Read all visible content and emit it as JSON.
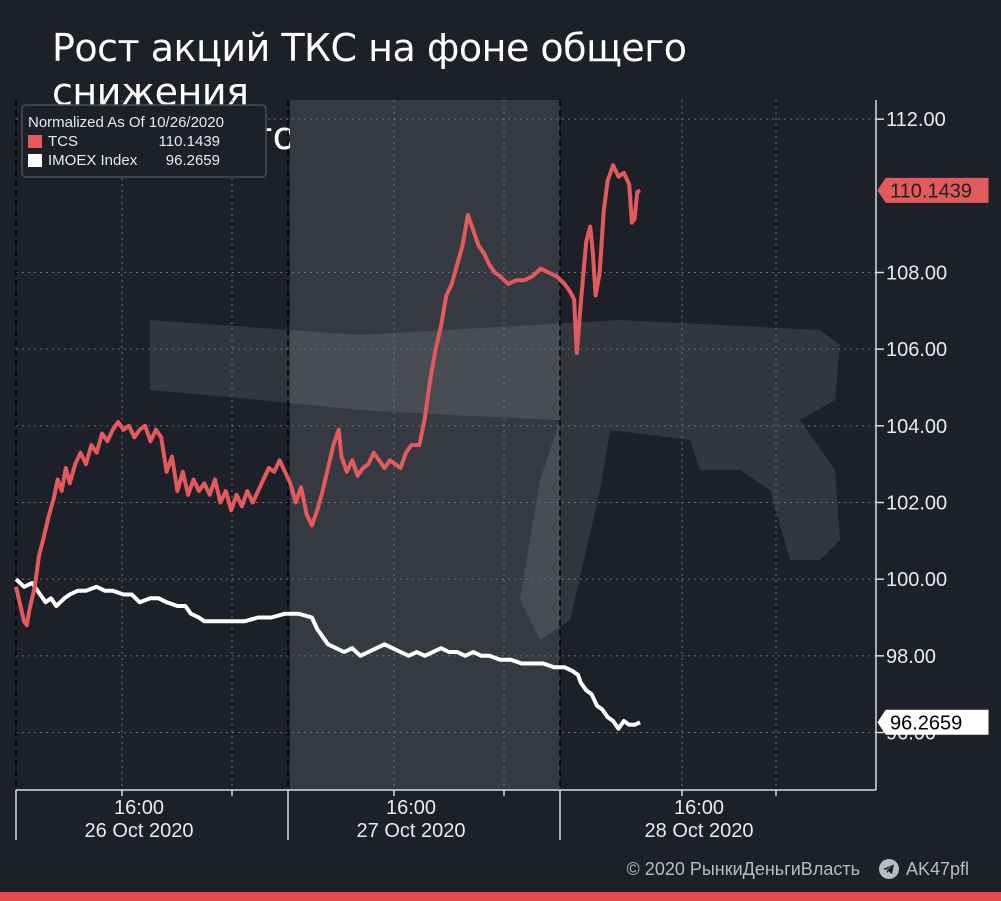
{
  "title_lines": [
    "Рост акций ТКС на фоне общего снижения",
    "российского рынка"
  ],
  "legend": {
    "header": "Normalized As Of 10/26/2020",
    "items": [
      {
        "label": "TCS",
        "value": "110.1439",
        "color": "#e35a5c"
      },
      {
        "label": "IMOEX Index",
        "value": "96.2659",
        "color": "#ffffff"
      }
    ]
  },
  "footer": {
    "copyright": "© 2020  РынкиДеньгиВласть",
    "telegram": "AK47pfl"
  },
  "colors": {
    "background": "#1d2028",
    "accent": "#e35a5c",
    "shade": "#363941",
    "grid": "#6b6e76"
  },
  "chart_data": {
    "type": "line",
    "x_ticks": [
      {
        "time": "16:00",
        "date": "26 Oct 2020"
      },
      {
        "time": "16:00",
        "date": "27 Oct 2020"
      },
      {
        "time": "16:00",
        "date": "28 Oct 2020"
      }
    ],
    "y_ticks": [
      "112.00",
      "108.00",
      "106.00",
      "104.00",
      "102.00",
      "100.00",
      "98.00",
      "96.00"
    ],
    "ylim": [
      94.5,
      112.5
    ],
    "grid": true,
    "legend_position": "top-left",
    "last_value_labels": [
      "110.1439",
      "96.2659"
    ],
    "series": [
      {
        "name": "TCS",
        "points": [
          [
            0,
            99.8
          ],
          [
            0.1,
            99.5
          ],
          [
            0.2,
            99.2
          ],
          [
            0.3,
            98.9
          ],
          [
            0.4,
            98.8
          ],
          [
            0.5,
            99.2
          ],
          [
            0.7,
            99.8
          ],
          [
            0.85,
            100.6
          ],
          [
            1.0,
            101.0
          ],
          [
            1.2,
            101.6
          ],
          [
            1.4,
            102.1
          ],
          [
            1.55,
            102.6
          ],
          [
            1.7,
            102.3
          ],
          [
            1.85,
            102.9
          ],
          [
            2.0,
            102.5
          ],
          [
            2.2,
            103.0
          ],
          [
            2.4,
            103.3
          ],
          [
            2.6,
            103.0
          ],
          [
            2.8,
            103.5
          ],
          [
            3.0,
            103.3
          ],
          [
            3.2,
            103.8
          ],
          [
            3.4,
            103.6
          ],
          [
            3.6,
            103.9
          ],
          [
            3.8,
            104.1
          ],
          [
            4.0,
            103.9
          ],
          [
            4.2,
            104.0
          ],
          [
            4.4,
            103.7
          ],
          [
            4.6,
            103.9
          ],
          [
            4.8,
            104.0
          ],
          [
            5.0,
            103.6
          ],
          [
            5.2,
            103.9
          ],
          [
            5.4,
            103.7
          ],
          [
            5.6,
            102.8
          ],
          [
            5.8,
            103.2
          ],
          [
            6.0,
            102.3
          ],
          [
            6.2,
            102.8
          ],
          [
            6.4,
            102.2
          ],
          [
            6.6,
            102.6
          ],
          [
            6.8,
            102.3
          ],
          [
            7.0,
            102.5
          ],
          [
            7.2,
            102.2
          ],
          [
            7.4,
            102.6
          ],
          [
            7.6,
            102.0
          ],
          [
            7.8,
            102.3
          ],
          [
            8.0,
            101.8
          ],
          [
            8.2,
            102.2
          ],
          [
            8.4,
            101.9
          ],
          [
            8.6,
            102.3
          ],
          [
            8.8,
            102.0
          ],
          [
            9.0,
            102.3
          ],
          [
            9.2,
            102.6
          ],
          [
            9.4,
            102.9
          ],
          [
            9.6,
            102.8
          ],
          [
            9.8,
            103.1
          ],
          [
            10.0,
            102.8
          ],
          [
            10.2,
            102.5
          ],
          [
            10.4,
            102.0
          ],
          [
            10.6,
            102.4
          ],
          [
            10.8,
            101.7
          ],
          [
            11.0,
            101.4
          ],
          [
            11.2,
            101.8
          ],
          [
            11.4,
            102.3
          ],
          [
            11.6,
            102.9
          ],
          [
            11.8,
            103.5
          ],
          [
            12.0,
            103.9
          ],
          [
            12.1,
            103.2
          ],
          [
            12.3,
            102.8
          ],
          [
            12.5,
            103.1
          ],
          [
            12.7,
            102.7
          ],
          [
            12.9,
            102.9
          ],
          [
            13.1,
            103.0
          ],
          [
            13.3,
            103.3
          ],
          [
            13.5,
            103.1
          ],
          [
            13.7,
            102.9
          ],
          [
            13.9,
            103.1
          ],
          [
            14.1,
            103.0
          ],
          [
            14.3,
            102.9
          ],
          [
            14.5,
            103.3
          ],
          [
            14.7,
            103.5
          ],
          [
            15.0,
            103.5
          ],
          [
            15.2,
            104.2
          ],
          [
            15.4,
            105.2
          ],
          [
            15.6,
            106.0
          ],
          [
            15.8,
            106.6
          ],
          [
            16.0,
            107.4
          ],
          [
            16.2,
            107.7
          ],
          [
            16.4,
            108.2
          ],
          [
            16.6,
            108.7
          ],
          [
            16.8,
            109.5
          ],
          [
            17.0,
            109.1
          ],
          [
            17.2,
            108.7
          ],
          [
            17.4,
            108.5
          ],
          [
            17.6,
            108.2
          ],
          [
            17.8,
            108.0
          ],
          [
            18.0,
            107.9
          ],
          [
            18.3,
            107.7
          ],
          [
            18.6,
            107.8
          ],
          [
            18.9,
            107.8
          ],
          [
            19.2,
            107.9
          ],
          [
            19.5,
            108.1
          ],
          [
            19.8,
            108.0
          ],
          [
            20.1,
            107.9
          ],
          [
            20.4,
            107.7
          ],
          [
            20.6,
            107.5
          ],
          [
            20.75,
            107.3
          ],
          [
            20.85,
            105.9
          ],
          [
            21.0,
            107.2
          ],
          [
            21.2,
            108.8
          ],
          [
            21.35,
            109.2
          ],
          [
            21.45,
            108.5
          ],
          [
            21.55,
            107.4
          ],
          [
            21.7,
            108.0
          ],
          [
            21.85,
            109.6
          ],
          [
            22.0,
            110.4
          ],
          [
            22.2,
            110.8
          ],
          [
            22.4,
            110.5
          ],
          [
            22.6,
            110.6
          ],
          [
            22.8,
            110.3
          ],
          [
            22.9,
            109.3
          ],
          [
            23.0,
            109.4
          ],
          [
            23.1,
            110.1
          ],
          [
            23.2,
            110.1439
          ]
        ]
      },
      {
        "name": "IMOEX Index",
        "points": [
          [
            0,
            100.0
          ],
          [
            0.3,
            99.8
          ],
          [
            0.6,
            99.9
          ],
          [
            0.9,
            99.6
          ],
          [
            1.1,
            99.4
          ],
          [
            1.3,
            99.5
          ],
          [
            1.5,
            99.3
          ],
          [
            1.8,
            99.5
          ],
          [
            2.0,
            99.6
          ],
          [
            2.3,
            99.7
          ],
          [
            2.6,
            99.7
          ],
          [
            3.0,
            99.8
          ],
          [
            3.3,
            99.7
          ],
          [
            3.6,
            99.7
          ],
          [
            4.0,
            99.6
          ],
          [
            4.3,
            99.6
          ],
          [
            4.6,
            99.4
          ],
          [
            5.0,
            99.5
          ],
          [
            5.3,
            99.5
          ],
          [
            5.6,
            99.4
          ],
          [
            6.0,
            99.3
          ],
          [
            6.3,
            99.3
          ],
          [
            6.5,
            99.1
          ],
          [
            6.8,
            99.0
          ],
          [
            7.0,
            98.9
          ],
          [
            7.5,
            98.9
          ],
          [
            8.0,
            98.9
          ],
          [
            8.5,
            98.9
          ],
          [
            9.0,
            99.0
          ],
          [
            9.5,
            99.0
          ],
          [
            10.0,
            99.1
          ],
          [
            10.5,
            99.1
          ],
          [
            11.0,
            99.0
          ],
          [
            11.2,
            98.7
          ],
          [
            11.4,
            98.5
          ],
          [
            11.6,
            98.3
          ],
          [
            11.9,
            98.2
          ],
          [
            12.2,
            98.1
          ],
          [
            12.5,
            98.2
          ],
          [
            12.8,
            98.0
          ],
          [
            13.1,
            98.1
          ],
          [
            13.4,
            98.2
          ],
          [
            13.7,
            98.3
          ],
          [
            14.0,
            98.2
          ],
          [
            14.3,
            98.1
          ],
          [
            14.6,
            98.0
          ],
          [
            14.9,
            98.1
          ],
          [
            15.2,
            98.0
          ],
          [
            15.5,
            98.1
          ],
          [
            15.8,
            98.2
          ],
          [
            16.1,
            98.1
          ],
          [
            16.4,
            98.1
          ],
          [
            16.7,
            98.0
          ],
          [
            17.0,
            98.1
          ],
          [
            17.3,
            98.0
          ],
          [
            17.6,
            98.0
          ],
          [
            18.0,
            97.9
          ],
          [
            18.4,
            97.9
          ],
          [
            18.8,
            97.8
          ],
          [
            19.2,
            97.8
          ],
          [
            19.6,
            97.8
          ],
          [
            20.0,
            97.7
          ],
          [
            20.4,
            97.7
          ],
          [
            20.7,
            97.6
          ],
          [
            20.9,
            97.5
          ],
          [
            21.0,
            97.3
          ],
          [
            21.2,
            97.1
          ],
          [
            21.4,
            97.0
          ],
          [
            21.6,
            96.7
          ],
          [
            21.8,
            96.6
          ],
          [
            22.0,
            96.4
          ],
          [
            22.2,
            96.3
          ],
          [
            22.4,
            96.1
          ],
          [
            22.6,
            96.3
          ],
          [
            22.8,
            96.2
          ],
          [
            23.0,
            96.2
          ],
          [
            23.2,
            96.2659
          ]
        ]
      }
    ]
  }
}
